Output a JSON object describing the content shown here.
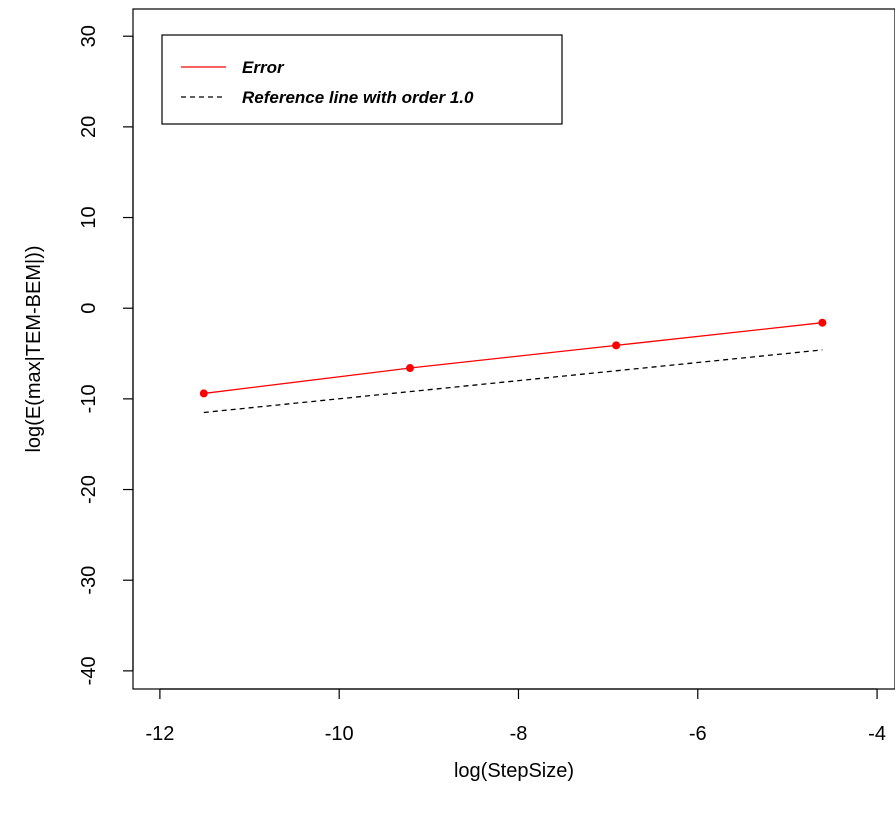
{
  "chart_data": {
    "type": "line",
    "title": "",
    "xlabel": "log(StepSize)",
    "ylabel": "log(E(max|TEM-BEM|))",
    "xlim": [
      -12.3,
      -3.8
    ],
    "ylim": [
      -42,
      33
    ],
    "xticks": [
      -12,
      -10,
      -8,
      -6,
      -4
    ],
    "yticks": [
      -40,
      -30,
      -20,
      -10,
      0,
      10,
      20,
      30
    ],
    "grid": false,
    "legend_position": "top-left",
    "series": [
      {
        "name": "Error",
        "style": "solid",
        "color": "#ff0000",
        "markers": true,
        "x": [
          -11.51,
          -9.21,
          -6.91,
          -4.61
        ],
        "y": [
          -9.4,
          -6.6,
          -4.1,
          -1.6
        ]
      },
      {
        "name": "Reference line with order 1.0",
        "style": "dashed",
        "color": "#000000",
        "markers": false,
        "x": [
          -11.51,
          -4.61
        ],
        "y": [
          -11.5,
          -4.6
        ]
      }
    ]
  }
}
